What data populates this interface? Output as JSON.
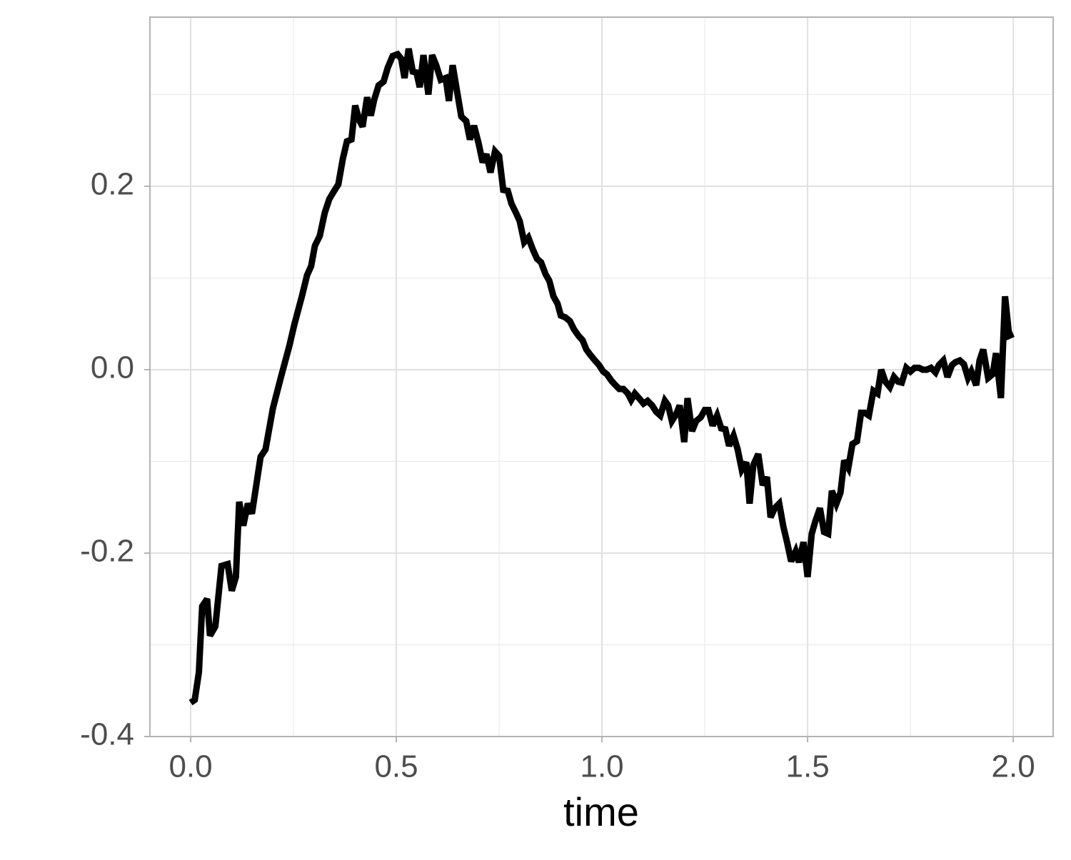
{
  "chart_data": {
    "type": "line",
    "x_title": "time",
    "color": "#000000",
    "grid": true,
    "xlim": [
      -0.099,
      2.097
    ],
    "ylim": [
      -0.4,
      0.3844
    ],
    "xticks": [
      {
        "value": 0,
        "label": "0.0"
      },
      {
        "value": 0.5,
        "label": "0.5"
      },
      {
        "value": 1,
        "label": "1.0"
      },
      {
        "value": 1.5,
        "label": "1.5"
      },
      {
        "value": 2,
        "label": "2.0"
      }
    ],
    "yticks": [
      {
        "value": -0.4,
        "label": "-0.4"
      },
      {
        "value": -0.2,
        "label": "-0.2"
      },
      {
        "value": 0,
        "label": "0.0"
      },
      {
        "value": 0.2,
        "label": "0.2"
      }
    ],
    "xminor": [
      0.25,
      0.75,
      1.25,
      1.75
    ],
    "yminor": [
      -0.3,
      -0.1,
      0.1,
      0.3
    ],
    "x": [
      0,
      0.01,
      0.02,
      0.028,
      0.04,
      0.047,
      0.06,
      0.075,
      0.09,
      0.1,
      0.11,
      0.118,
      0.128,
      0.139,
      0.149,
      0.17,
      0.182,
      0.2,
      0.219,
      0.24,
      0.252,
      0.271,
      0.283,
      0.293,
      0.302,
      0.314,
      0.326,
      0.337,
      0.349,
      0.359,
      0.37,
      0.38,
      0.391,
      0.4,
      0.41,
      0.418,
      0.429,
      0.438,
      0.446,
      0.457,
      0.469,
      0.479,
      0.491,
      0.503,
      0.512,
      0.52,
      0.53,
      0.54,
      0.549,
      0.557,
      0.566,
      0.578,
      0.587,
      0.597,
      0.608,
      0.62,
      0.628,
      0.637,
      0.649,
      0.658,
      0.67,
      0.679,
      0.689,
      0.7,
      0.71,
      0.719,
      0.729,
      0.74,
      0.75,
      0.76,
      0.771,
      0.78,
      0.792,
      0.8,
      0.811,
      0.821,
      0.832,
      0.842,
      0.852,
      0.863,
      0.872,
      0.882,
      0.892,
      0.9,
      0.911,
      0.922,
      0.932,
      0.943,
      0.953,
      0.962,
      0.972,
      0.983,
      0.993,
      1.003,
      1.012,
      1.023,
      1.033,
      1.042,
      1.052,
      1.063,
      1.071,
      1.08,
      1.09,
      1.101,
      1.111,
      1.122,
      1.132,
      1.142,
      1.153,
      1.161,
      1.17,
      1.181,
      1.189,
      1.2,
      1.208,
      1.219,
      1.229,
      1.24,
      1.25,
      1.259,
      1.269,
      1.28,
      1.29,
      1.3,
      1.309,
      1.32,
      1.33,
      1.34,
      1.351,
      1.359,
      1.368,
      1.38,
      1.391,
      1.401,
      1.41,
      1.42,
      1.431,
      1.441,
      1.45,
      1.46,
      1.471,
      1.479,
      1.49,
      1.5,
      1.51,
      1.519,
      1.53,
      1.54,
      1.55,
      1.559,
      1.57,
      1.58,
      1.589,
      1.599,
      1.609,
      1.62,
      1.63,
      1.639,
      1.649,
      1.66,
      1.67,
      1.679,
      1.689,
      1.7,
      1.71,
      1.72,
      1.729,
      1.74,
      1.75,
      1.76,
      1.771,
      1.78,
      1.79,
      1.8,
      1.811,
      1.819,
      1.83,
      1.84,
      1.851,
      1.859,
      1.87,
      1.88,
      1.89,
      1.898,
      1.91,
      1.918,
      1.927,
      1.939,
      1.95,
      1.958,
      1.97,
      1.98,
      1.99,
      2.0
    ],
    "values": [
      -0.363,
      -0.36,
      -0.33,
      -0.258,
      -0.25,
      -0.29,
      -0.28,
      -0.214,
      -0.212,
      -0.241,
      -0.226,
      -0.144,
      -0.17,
      -0.146,
      -0.157,
      -0.095,
      -0.087,
      -0.042,
      -0.009,
      0.026,
      0.049,
      0.081,
      0.103,
      0.113,
      0.135,
      0.146,
      0.171,
      0.186,
      0.195,
      0.202,
      0.23,
      0.249,
      0.251,
      0.288,
      0.272,
      0.265,
      0.297,
      0.277,
      0.294,
      0.31,
      0.314,
      0.329,
      0.342,
      0.344,
      0.339,
      0.318,
      0.35,
      0.325,
      0.324,
      0.308,
      0.343,
      0.3,
      0.343,
      0.332,
      0.316,
      0.318,
      0.293,
      0.332,
      0.3,
      0.276,
      0.271,
      0.251,
      0.266,
      0.247,
      0.226,
      0.235,
      0.215,
      0.238,
      0.233,
      0.196,
      0.195,
      0.181,
      0.17,
      0.162,
      0.139,
      0.144,
      0.131,
      0.121,
      0.117,
      0.104,
      0.097,
      0.08,
      0.072,
      0.059,
      0.057,
      0.053,
      0.044,
      0.037,
      0.032,
      0.022,
      0.016,
      0.01,
      0.005,
      -0.002,
      -0.005,
      -0.012,
      -0.017,
      -0.021,
      -0.021,
      -0.026,
      -0.033,
      -0.026,
      -0.031,
      -0.037,
      -0.034,
      -0.039,
      -0.046,
      -0.05,
      -0.034,
      -0.039,
      -0.056,
      -0.048,
      -0.039,
      -0.079,
      -0.031,
      -0.067,
      -0.056,
      -0.052,
      -0.044,
      -0.044,
      -0.061,
      -0.05,
      -0.064,
      -0.065,
      -0.083,
      -0.072,
      -0.087,
      -0.109,
      -0.101,
      -0.146,
      -0.104,
      -0.092,
      -0.126,
      -0.117,
      -0.161,
      -0.151,
      -0.146,
      -0.171,
      -0.188,
      -0.209,
      -0.198,
      -0.21,
      -0.188,
      -0.226,
      -0.179,
      -0.165,
      -0.151,
      -0.177,
      -0.179,
      -0.132,
      -0.146,
      -0.134,
      -0.099,
      -0.107,
      -0.081,
      -0.078,
      -0.047,
      -0.047,
      -0.05,
      -0.023,
      -0.026,
      0.0,
      -0.013,
      -0.019,
      -0.008,
      -0.013,
      -0.014,
      0.002,
      -0.002,
      0.002,
      0.002,
      0.0,
      0.0,
      0.002,
      -0.003,
      0.005,
      0.01,
      -0.008,
      0.005,
      0.008,
      0.01,
      0.006,
      -0.009,
      -0.002,
      -0.017,
      0.01,
      0.022,
      -0.009,
      -0.005,
      0.018,
      -0.031,
      0.08,
      0.037,
      0.039
    ]
  }
}
